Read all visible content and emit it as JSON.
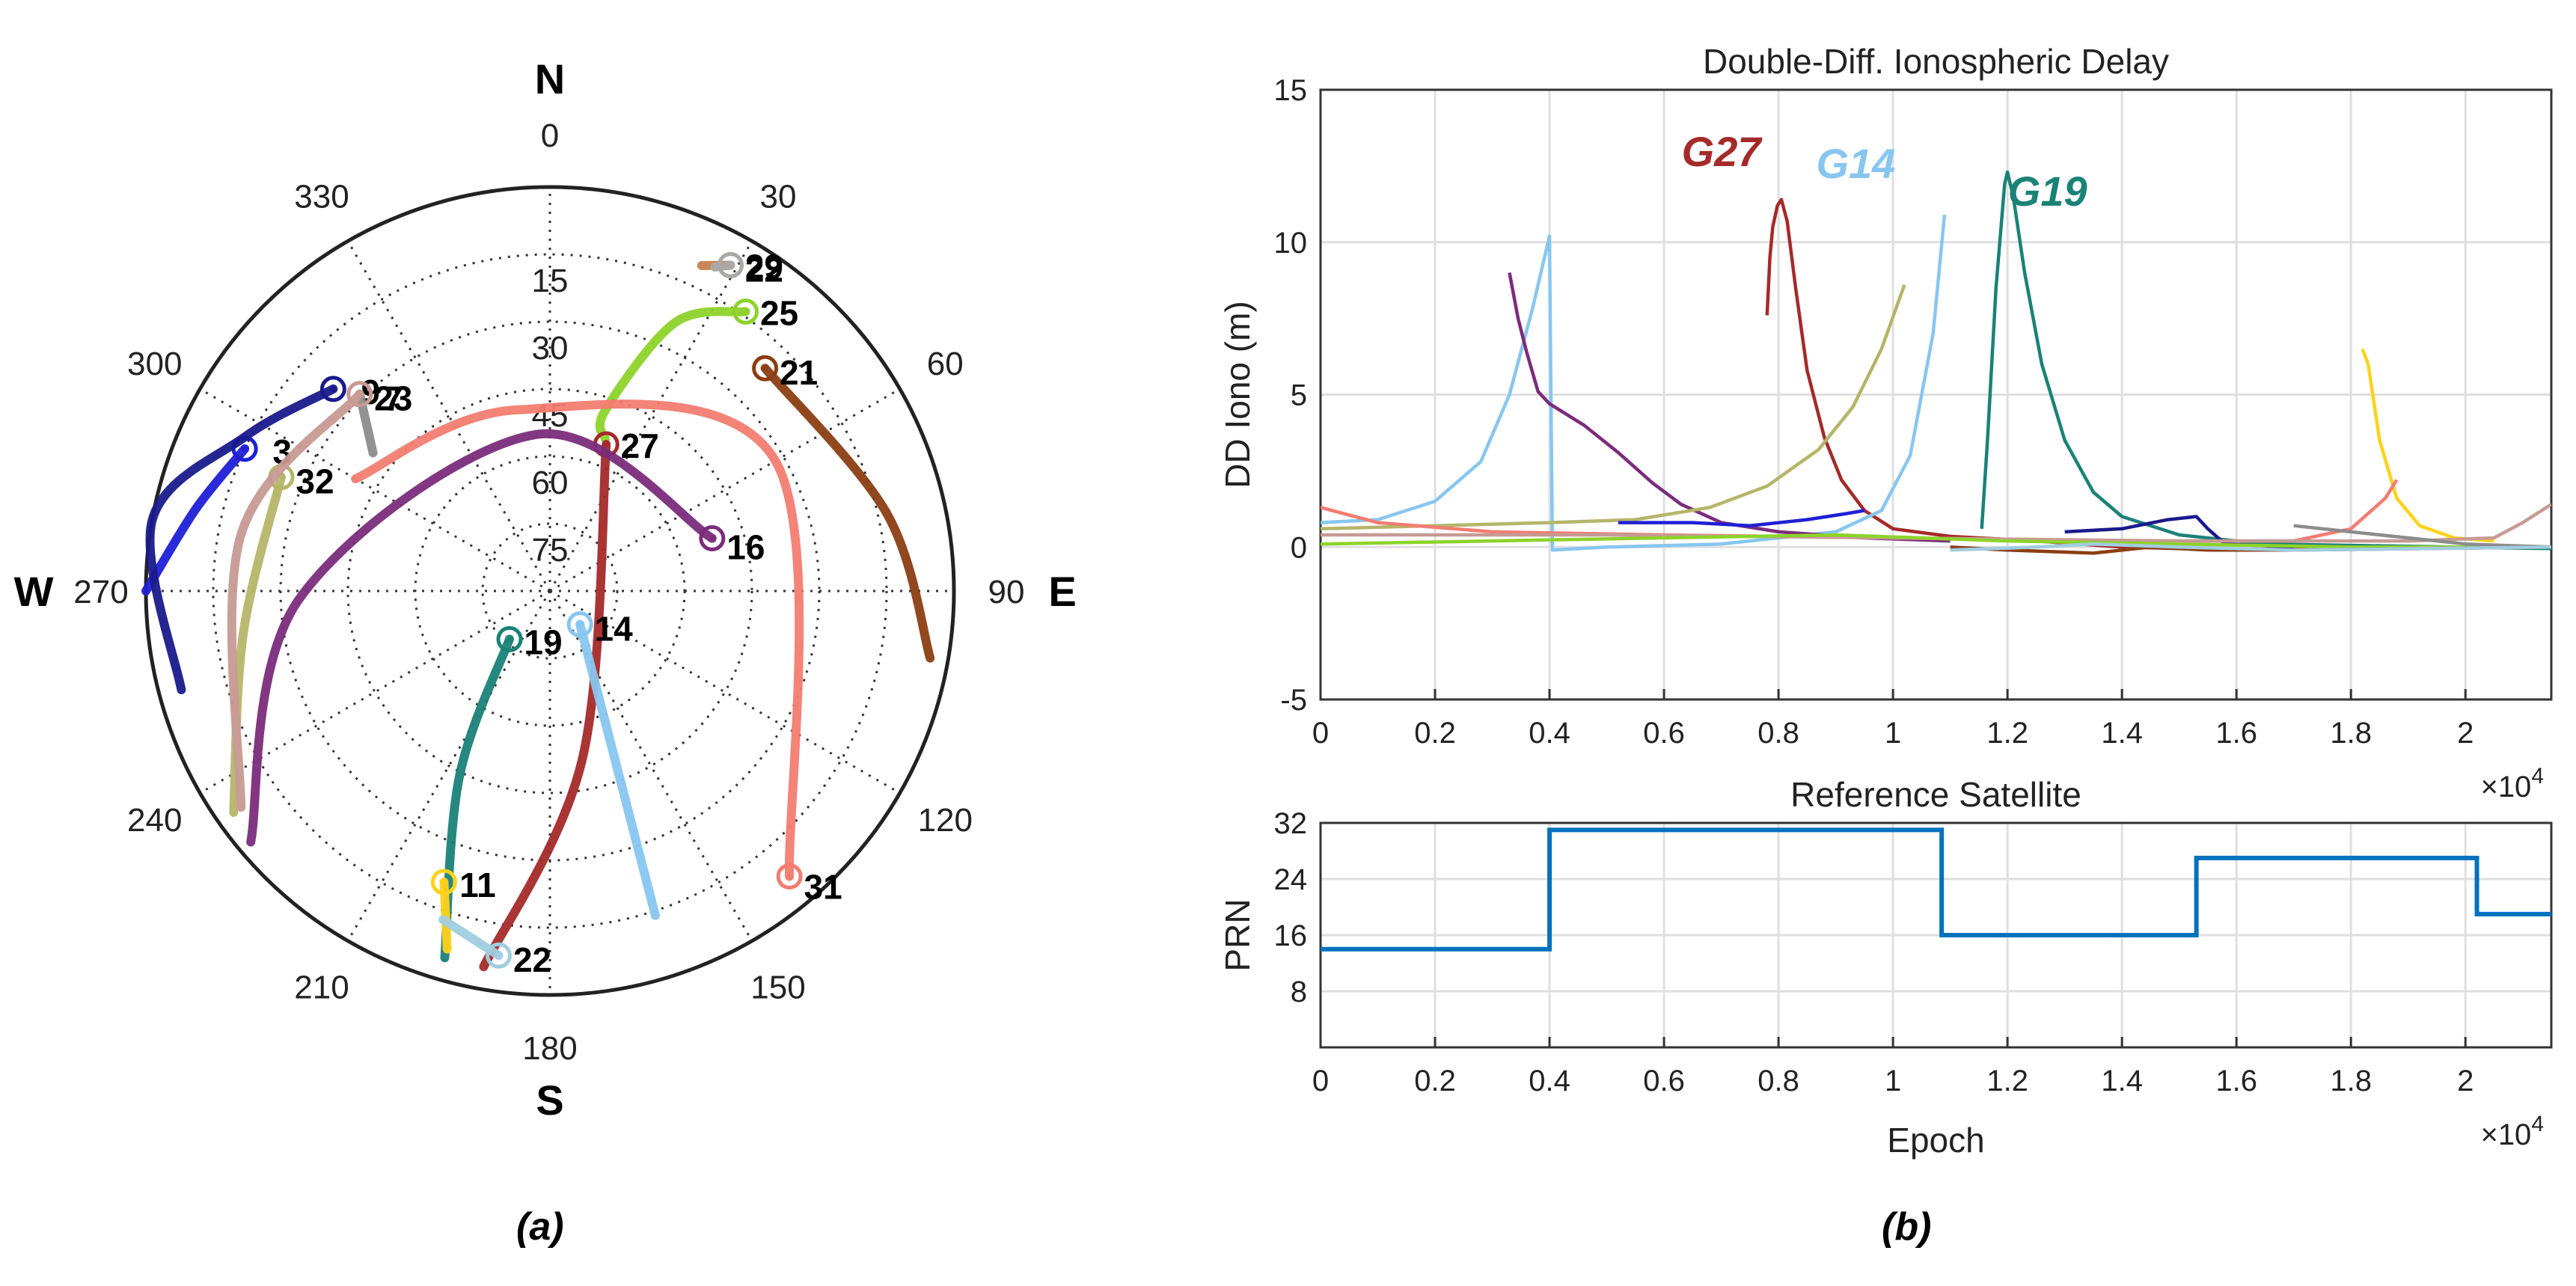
{
  "chart_data": [
    {
      "type": "polar-skyplot",
      "caption": "(a)",
      "directions": {
        "N": "N",
        "E": "E",
        "S": "S",
        "W": "W"
      },
      "azimuth_ticks": [
        0,
        30,
        60,
        90,
        120,
        150,
        180,
        210,
        240,
        270,
        300,
        330
      ],
      "elevation_ticks": [
        15,
        30,
        45,
        60,
        75
      ],
      "satellites": [
        {
          "prn": "3",
          "color": "#1f1fd6",
          "track": [
            [
              295,
              15
            ],
            [
              283,
              9
            ],
            [
              270,
              0
            ]
          ]
        },
        {
          "prn": "9",
          "color": "#1a1a8c",
          "track": [
            [
              313,
              24
            ],
            [
              297,
              14
            ],
            [
              280,
              0
            ],
            [
              255,
              5
            ]
          ]
        },
        {
          "prn": "7",
          "color": "#8c8c8c",
          "track": [
            [
              316,
              29
            ],
            [
              308,
              40
            ]
          ]
        },
        {
          "prn": "32",
          "color": "#b5b56a",
          "track": [
            [
              293,
              25
            ],
            [
              262,
              21
            ],
            [
              235,
              4
            ]
          ]
        },
        {
          "prn": "23",
          "color": "#c79a94",
          "track": [
            [
              316,
              29
            ],
            [
              280,
              20
            ],
            [
              235,
              6
            ]
          ]
        },
        {
          "prn": "29",
          "color": "#c7804f",
          "track": [
            [
              29,
              7
            ],
            [
              25,
              10
            ]
          ]
        },
        {
          "prn": "22",
          "color": "#a9a9a9",
          "track": [
            [
              29,
              7
            ],
            [
              27,
              9
            ]
          ]
        },
        {
          "prn": "25",
          "color": "#8dd32a",
          "track": [
            [
              35,
              14
            ],
            [
              25,
              24
            ],
            [
              17,
              48
            ],
            [
              20,
              54
            ]
          ]
        },
        {
          "prn": "21",
          "color": "#8b3e12",
          "track": [
            [
              44,
              21
            ],
            [
              77,
              13
            ],
            [
              100,
              4
            ]
          ]
        },
        {
          "prn": "27",
          "color": "#a52a2a",
          "track": [
            [
              21,
              55
            ],
            [
              169,
              52
            ],
            [
              190,
              5
            ]
          ]
        },
        {
          "prn": "16",
          "color": "#7b2c7b",
          "track": [
            [
              72,
              52
            ],
            [
              355,
              55
            ],
            [
              268,
              34
            ],
            [
              230,
              3
            ]
          ]
        },
        {
          "prn": "31",
          "color": "#f37c71",
          "track": [
            [
              140,
              7
            ],
            [
              60,
              32
            ],
            [
              350,
              49
            ],
            [
              300,
              40
            ]
          ]
        },
        {
          "prn": "19",
          "color": "#1a8277",
          "track": [
            [
              220,
              76
            ],
            [
              206,
              44
            ],
            [
              196,
              5
            ]
          ]
        },
        {
          "prn": "11",
          "color": "#ffd21a",
          "track": [
            [
              200,
              21
            ],
            [
              196,
              7
            ]
          ]
        },
        {
          "prn": "22b",
          "label": "22",
          "color": "#a0cde0",
          "track": [
            [
              188,
              8
            ],
            [
              198,
              13
            ]
          ]
        },
        {
          "prn": "14",
          "color": "#87c6f0",
          "track": [
            [
              138,
              80
            ],
            [
              162,
              14
            ]
          ]
        }
      ],
      "labels": [
        "3",
        "9",
        "7",
        "32",
        "23",
        "29",
        "22",
        "25",
        "21",
        "27",
        "16",
        "31",
        "19",
        "11",
        "22",
        "14"
      ]
    },
    {
      "type": "line",
      "caption": "(b)",
      "title": "Double-Diff. Ionospheric Delay",
      "xlabel": "",
      "ylabel": "DD Iono (m)",
      "xlim": [
        0,
        21500
      ],
      "ylim": [
        -5,
        15
      ],
      "xticks": [
        0,
        0.2,
        0.4,
        0.6,
        0.8,
        1,
        1.2,
        1.4,
        1.6,
        1.8,
        2
      ],
      "yticks": [
        -5,
        0,
        5,
        10,
        15
      ],
      "xscale_label": "×10",
      "xscale_exp": "4",
      "annotations": [
        {
          "text": "G27",
          "color": "#a52a2a",
          "x": 7000,
          "y": 12.5
        },
        {
          "text": "G14",
          "color": "#87c6f0",
          "x": 9350,
          "y": 12.1
        },
        {
          "text": "G19",
          "color": "#1a8277",
          "x": 12700,
          "y": 11.2
        }
      ],
      "series": [
        {
          "name": "G27",
          "color": "#a52a2a",
          "points": [
            [
              7800,
              7.6
            ],
            [
              7850,
              9.5
            ],
            [
              7900,
              10.5
            ],
            [
              7980,
              11.2
            ],
            [
              8050,
              11.4
            ],
            [
              8150,
              10.7
            ],
            [
              8300,
              8.5
            ],
            [
              8500,
              5.8
            ],
            [
              8800,
              3.6
            ],
            [
              9100,
              2.2
            ],
            [
              9500,
              1.2
            ],
            [
              10000,
              0.6
            ],
            [
              11000,
              0.35
            ],
            [
              12500,
              0.2
            ],
            [
              14000,
              0.0
            ],
            [
              16000,
              -0.1
            ],
            [
              18000,
              0.0
            ],
            [
              21500,
              0.0
            ]
          ]
        },
        {
          "name": "G14",
          "color": "#87c6f0",
          "points": [
            [
              0,
              0.8
            ],
            [
              1000,
              0.9
            ],
            [
              2000,
              1.5
            ],
            [
              2800,
              2.8
            ],
            [
              3300,
              5.0
            ],
            [
              3700,
              7.8
            ],
            [
              4000,
              10.2
            ],
            [
              4050,
              -0.1
            ],
            [
              5000,
              0.0
            ],
            [
              7000,
              0.1
            ],
            [
              9000,
              0.5
            ],
            [
              9800,
              1.2
            ],
            [
              10300,
              3.0
            ],
            [
              10700,
              7.0
            ],
            [
              10900,
              10.9
            ]
          ]
        },
        {
          "name": "G19",
          "color": "#1a8277",
          "points": [
            [
              11550,
              0.6
            ],
            [
              11650,
              3.5
            ],
            [
              11800,
              8.5
            ],
            [
              11950,
              11.9
            ],
            [
              12000,
              12.3
            ],
            [
              12100,
              11.5
            ],
            [
              12300,
              9.0
            ],
            [
              12600,
              6.0
            ],
            [
              13000,
              3.5
            ],
            [
              13500,
              1.8
            ],
            [
              14000,
              1.0
            ],
            [
              15000,
              0.4
            ],
            [
              16500,
              0.1
            ],
            [
              21500,
              -0.05
            ]
          ]
        },
        {
          "name": "purple",
          "color": "#7b2c7b",
          "points": [
            [
              3300,
              9.0
            ],
            [
              3450,
              7.5
            ],
            [
              3600,
              6.4
            ],
            [
              3800,
              5.1
            ],
            [
              4000,
              4.7
            ],
            [
              4600,
              4.0
            ],
            [
              5200,
              3.1
            ],
            [
              5800,
              2.1
            ],
            [
              6300,
              1.4
            ],
            [
              7000,
              0.8
            ],
            [
              8000,
              0.5
            ],
            [
              9500,
              0.3
            ],
            [
              11000,
              0.2
            ]
          ]
        },
        {
          "name": "olive",
          "color": "#b5b56a",
          "points": [
            [
              0,
              0.6
            ],
            [
              2000,
              0.7
            ],
            [
              4000,
              0.8
            ],
            [
              5500,
              0.9
            ],
            [
              6800,
              1.3
            ],
            [
              7800,
              2.0
            ],
            [
              8700,
              3.2
            ],
            [
              9300,
              4.6
            ],
            [
              9800,
              6.5
            ],
            [
              10200,
              8.6
            ]
          ]
        },
        {
          "name": "blue",
          "color": "#1f1fd6",
          "points": [
            [
              5200,
              0.8
            ],
            [
              6500,
              0.8
            ],
            [
              7500,
              0.7
            ],
            [
              8500,
              0.9
            ],
            [
              9200,
              1.1
            ],
            [
              9500,
              1.2
            ]
          ]
        },
        {
          "name": "navy",
          "color": "#1a1a8c",
          "points": [
            [
              13000,
              0.5
            ],
            [
              14000,
              0.6
            ],
            [
              14800,
              0.9
            ],
            [
              15300,
              1.0
            ],
            [
              15500,
              0.6
            ],
            [
              15800,
              0.1
            ],
            [
              17000,
              0.0
            ]
          ]
        },
        {
          "name": "yellow",
          "color": "#ffd21a",
          "points": [
            [
              18200,
              6.5
            ],
            [
              18300,
              6.0
            ],
            [
              18500,
              3.5
            ],
            [
              18800,
              1.6
            ],
            [
              19200,
              0.7
            ],
            [
              19800,
              0.3
            ],
            [
              20500,
              0.2
            ]
          ]
        },
        {
          "name": "salmon",
          "color": "#f37c71",
          "points": [
            [
              0,
              1.3
            ],
            [
              1000,
              0.8
            ],
            [
              3000,
              0.5
            ],
            [
              6000,
              0.4
            ],
            [
              10000,
              0.3
            ],
            [
              14000,
              0.2
            ],
            [
              17000,
              0.2
            ],
            [
              18000,
              0.6
            ],
            [
              18600,
              1.6
            ],
            [
              18800,
              2.2
            ]
          ]
        },
        {
          "name": "mauve",
          "color": "#c79a94",
          "points": [
            [
              0,
              0.4
            ],
            [
              5000,
              0.4
            ],
            [
              10000,
              0.3
            ],
            [
              15000,
              0.2
            ],
            [
              19000,
              0.2
            ],
            [
              20500,
              0.3
            ],
            [
              21000,
              0.8
            ],
            [
              21500,
              1.4
            ]
          ]
        },
        {
          "name": "green",
          "color": "#8dd32a",
          "points": [
            [
              0,
              0.1
            ],
            [
              3000,
              0.2
            ],
            [
              6000,
              0.3
            ],
            [
              9000,
              0.4
            ],
            [
              12000,
              0.2
            ],
            [
              15000,
              0.1
            ],
            [
              18000,
              0.0
            ],
            [
              21500,
              0.0
            ]
          ]
        },
        {
          "name": "gray",
          "color": "#8c8c8c",
          "points": [
            [
              17000,
              0.7
            ],
            [
              18000,
              0.5
            ],
            [
              19000,
              0.3
            ],
            [
              20000,
              0.1
            ],
            [
              21500,
              0.0
            ]
          ]
        },
        {
          "name": "brown",
          "color": "#8b3e12",
          "points": [
            [
              11000,
              0.0
            ],
            [
              12000,
              -0.1
            ],
            [
              13500,
              -0.2
            ],
            [
              14500,
              0.0
            ],
            [
              15500,
              -0.1
            ],
            [
              17000,
              -0.1
            ],
            [
              21500,
              0.0
            ]
          ]
        },
        {
          "name": "lightblue2",
          "color": "#a0cde0",
          "points": [
            [
              11000,
              -0.1
            ],
            [
              12500,
              0.0
            ],
            [
              13500,
              0.1
            ],
            [
              15000,
              0.0
            ],
            [
              17000,
              -0.1
            ],
            [
              21500,
              0.0
            ]
          ]
        }
      ]
    },
    {
      "type": "step",
      "title": "Reference Satellite",
      "xlabel": "Epoch",
      "ylabel": "PRN",
      "xlim": [
        0,
        21500
      ],
      "ylim": [
        0,
        32
      ],
      "xticks": [
        0,
        0.2,
        0.4,
        0.6,
        0.8,
        1,
        1.2,
        1.4,
        1.6,
        1.8,
        2
      ],
      "yticks": [
        8,
        16,
        24,
        32
      ],
      "xscale_label": "×10",
      "xscale_exp": "4",
      "color": "#0072bd",
      "steps": [
        [
          0,
          14
        ],
        [
          4000,
          31
        ],
        [
          10850,
          16
        ],
        [
          15300,
          27
        ],
        [
          20200,
          19
        ],
        [
          21500,
          19
        ]
      ]
    }
  ]
}
